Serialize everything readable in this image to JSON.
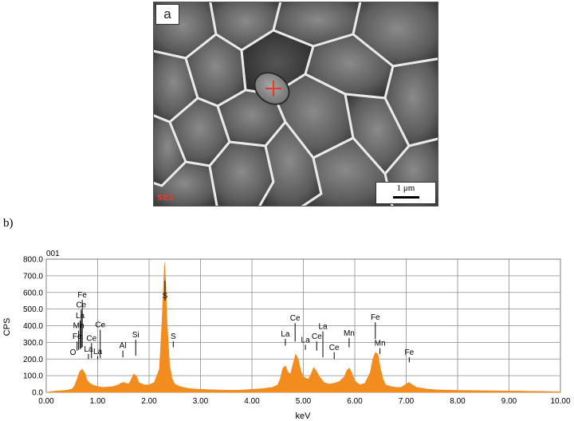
{
  "figure": {
    "panel_a_label": "a",
    "sem_tag": "SE1",
    "scale_bar_label": "1 μm",
    "panel_b_label": "b)"
  },
  "colors": {
    "spectrum": "#f28c1e",
    "cross": "#e43b2a",
    "grid": "#8c8c8c"
  },
  "chart_data": {
    "type": "area",
    "title": "001",
    "xlabel": "keV",
    "ylabel": "CPS",
    "xlim": [
      0,
      10
    ],
    "ylim": [
      0,
      800
    ],
    "x_ticks": [
      "0.00",
      "1.00",
      "2.00",
      "3.00",
      "4.00",
      "5.00",
      "6.00",
      "7.00",
      "8.00",
      "9.00",
      "10.00"
    ],
    "y_ticks": [
      "0.0",
      "100.0",
      "200.0",
      "300.0",
      "400.0",
      "500.0",
      "600.0",
      "700.0",
      "800.0"
    ],
    "grid": true,
    "series": [
      {
        "x": [
          0.0,
          0.05,
          0.1,
          0.2,
          0.3,
          0.4,
          0.5,
          0.55,
          0.6,
          0.65,
          0.7,
          0.75,
          0.8,
          0.85,
          0.9,
          0.95,
          1.0,
          1.1,
          1.2,
          1.3,
          1.4,
          1.45,
          1.5,
          1.55,
          1.6,
          1.65,
          1.7,
          1.75,
          1.8,
          1.9,
          2.0,
          2.1,
          2.2,
          2.25,
          2.3,
          2.32,
          2.35,
          2.4,
          2.45,
          2.5,
          2.6,
          2.7,
          2.8,
          3.0,
          3.2,
          3.4,
          3.6,
          3.8,
          4.0,
          4.2,
          4.4,
          4.5,
          4.55,
          4.6,
          4.65,
          4.7,
          4.75,
          4.8,
          4.85,
          4.9,
          4.95,
          5.0,
          5.05,
          5.1,
          5.15,
          5.2,
          5.25,
          5.3,
          5.4,
          5.5,
          5.6,
          5.7,
          5.8,
          5.85,
          5.9,
          5.95,
          6.0,
          6.1,
          6.2,
          6.3,
          6.35,
          6.4,
          6.45,
          6.5,
          6.55,
          6.6,
          6.7,
          6.8,
          6.9,
          7.0,
          7.05,
          7.1,
          7.2,
          7.4,
          7.6,
          8.0,
          8.5,
          9.0,
          9.5,
          10.0
        ],
        "y": [
          0,
          2,
          5,
          8,
          10,
          13,
          20,
          40,
          80,
          125,
          140,
          115,
          70,
          55,
          45,
          40,
          35,
          30,
          32,
          35,
          45,
          55,
          60,
          55,
          50,
          75,
          110,
          100,
          60,
          45,
          45,
          60,
          140,
          420,
          780,
          700,
          420,
          160,
          80,
          50,
          35,
          28,
          22,
          18,
          16,
          14,
          13,
          14,
          18,
          22,
          30,
          45,
          80,
          145,
          160,
          120,
          110,
          170,
          230,
          200,
          130,
          95,
          85,
          80,
          110,
          150,
          130,
          100,
          60,
          50,
          55,
          65,
          95,
          135,
          145,
          110,
          70,
          45,
          55,
          120,
          200,
          240,
          230,
          140,
          80,
          45,
          35,
          30,
          30,
          50,
          60,
          50,
          30,
          20,
          15,
          12,
          10,
          8,
          6,
          4
        ]
      }
    ],
    "peak_labels": [
      {
        "x": 0.52,
        "text": "O",
        "y": 225,
        "ytop": 210
      },
      {
        "x": 0.6,
        "text": "Fe",
        "y": 320,
        "ytop": 250
      },
      {
        "x": 0.63,
        "text": "Mn",
        "y": 385,
        "ytop": 255
      },
      {
        "x": 0.66,
        "text": "La",
        "y": 445,
        "ytop": 260
      },
      {
        "x": 0.68,
        "text": "Ce",
        "y": 510,
        "ytop": 265
      },
      {
        "x": 0.7,
        "text": "Fe",
        "y": 570,
        "ytop": 270
      },
      {
        "x": 0.82,
        "text": "La",
        "y": 245,
        "ytop": 200
      },
      {
        "x": 0.88,
        "text": "Ce",
        "y": 310,
        "ytop": 205
      },
      {
        "x": 1.0,
        "text": "La",
        "y": 230,
        "ytop": 200
      },
      {
        "x": 1.05,
        "text": "Ce",
        "y": 390,
        "ytop": 205
      },
      {
        "x": 1.49,
        "text": "Al",
        "y": 265,
        "ytop": 210
      },
      {
        "x": 1.74,
        "text": "Si",
        "y": 330,
        "ytop": 220
      },
      {
        "x": 2.31,
        "text": "S",
        "y": 565,
        "ytop": 670
      },
      {
        "x": 2.47,
        "text": "S",
        "y": 320,
        "ytop": 270
      },
      {
        "x": 4.65,
        "text": "La",
        "y": 335,
        "ytop": 280
      },
      {
        "x": 4.84,
        "text": "Ce",
        "y": 430,
        "ytop": 305
      },
      {
        "x": 5.04,
        "text": "La",
        "y": 300,
        "ytop": 255
      },
      {
        "x": 5.26,
        "text": "Ce",
        "y": 320,
        "ytop": 250
      },
      {
        "x": 5.38,
        "text": "La",
        "y": 380,
        "ytop": 210
      },
      {
        "x": 5.6,
        "text": "Ce",
        "y": 255,
        "ytop": 200
      },
      {
        "x": 5.89,
        "text": "Mn",
        "y": 340,
        "ytop": 270
      },
      {
        "x": 6.4,
        "text": "Fe",
        "y": 435,
        "ytop": 320
      },
      {
        "x": 6.49,
        "text": "Mn",
        "y": 280,
        "ytop": 230
      },
      {
        "x": 7.06,
        "text": "Fe",
        "y": 225,
        "ytop": 180
      }
    ]
  }
}
